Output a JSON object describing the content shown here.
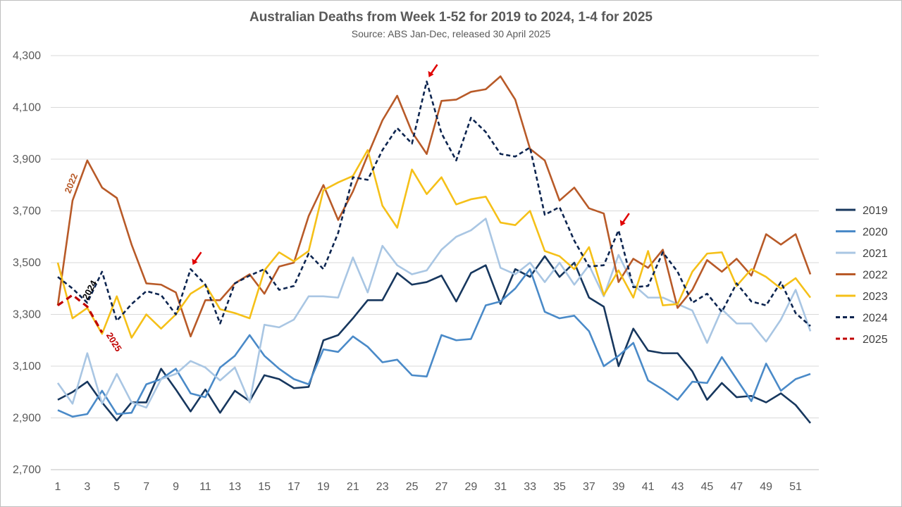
{
  "chart_data": {
    "type": "line",
    "title": "Australian Deaths from Week 1-52 for 2019 to 2024, 1-4 for 2025",
    "subtitle": "Source: ABS Jan-Dec, released 30 April 2025",
    "xlabel": "",
    "ylabel": "",
    "ylim": [
      2700,
      4300
    ],
    "y_ticks": [
      "2,700",
      "2,900",
      "3,100",
      "3,300",
      "3,500",
      "3,700",
      "3,900",
      "4,100",
      "4,300"
    ],
    "x_ticks": [
      "1",
      "3",
      "5",
      "7",
      "9",
      "11",
      "13",
      "15",
      "17",
      "19",
      "21",
      "23",
      "25",
      "27",
      "29",
      "31",
      "33",
      "35",
      "37",
      "39",
      "41",
      "43",
      "45",
      "47",
      "49",
      "51"
    ],
    "x_range": [
      1,
      52
    ],
    "grid": "horizontal",
    "legend_position": "right",
    "series": [
      {
        "name": "2019",
        "color": "#17375e",
        "dash": "solid",
        "values": [
          2970,
          3000,
          3040,
          2960,
          2890,
          2960,
          2960,
          3090,
          3010,
          2925,
          3010,
          2920,
          3005,
          2965,
          3065,
          3050,
          3015,
          3020,
          3200,
          3220,
          3285,
          3355,
          3355,
          3460,
          3415,
          3425,
          3450,
          3350,
          3460,
          3490,
          3340,
          3475,
          3445,
          3525,
          3445,
          3500,
          3365,
          3330,
          3100,
          3245,
          3160,
          3150,
          3150,
          3080,
          2970,
          3035,
          2980,
          2985,
          2960,
          2995,
          2950,
          2880
        ]
      },
      {
        "name": "2020",
        "color": "#4a8ac8",
        "dash": "solid",
        "values": [
          2930,
          2905,
          2915,
          3005,
          2915,
          2920,
          3030,
          3050,
          3090,
          2995,
          2980,
          3095,
          3140,
          3220,
          3140,
          3090,
          3050,
          3030,
          3165,
          3155,
          3215,
          3175,
          3115,
          3125,
          3065,
          3060,
          3220,
          3200,
          3205,
          3335,
          3350,
          3400,
          3475,
          3310,
          3285,
          3295,
          3235,
          3100,
          3140,
          3190,
          3045,
          3010,
          2970,
          3040,
          3035,
          3135,
          3050,
          2965,
          3110,
          3005,
          3050,
          3070
        ]
      },
      {
        "name": "2021",
        "color": "#a9c6e3",
        "dash": "solid",
        "values": [
          3035,
          2955,
          3150,
          2955,
          3070,
          2960,
          2940,
          3050,
          3070,
          3120,
          3095,
          3045,
          3095,
          2960,
          3260,
          3250,
          3280,
          3370,
          3370,
          3365,
          3520,
          3385,
          3565,
          3490,
          3455,
          3470,
          3550,
          3600,
          3625,
          3670,
          3480,
          3455,
          3500,
          3425,
          3500,
          3415,
          3490,
          3370,
          3530,
          3415,
          3365,
          3365,
          3340,
          3315,
          3190,
          3320,
          3265,
          3265,
          3195,
          3280,
          3395,
          3235
        ]
      },
      {
        "name": "2022",
        "color": "#b85a28",
        "dash": "solid",
        "values": [
          3335,
          3740,
          3895,
          3790,
          3750,
          3570,
          3420,
          3415,
          3385,
          3215,
          3355,
          3355,
          3420,
          3455,
          3380,
          3485,
          3500,
          3680,
          3800,
          3665,
          3775,
          3915,
          4050,
          4145,
          4005,
          3920,
          4125,
          4130,
          4160,
          4170,
          4220,
          4130,
          3940,
          3895,
          3740,
          3790,
          3710,
          3690,
          3425,
          3515,
          3480,
          3550,
          3325,
          3395,
          3510,
          3465,
          3515,
          3450,
          3610,
          3570,
          3610,
          3455
        ]
      },
      {
        "name": "2023",
        "color": "#f5c018",
        "dash": "solid",
        "values": [
          3500,
          3285,
          3325,
          3225,
          3370,
          3210,
          3300,
          3245,
          3300,
          3380,
          3415,
          3320,
          3305,
          3285,
          3470,
          3540,
          3505,
          3545,
          3780,
          3810,
          3835,
          3935,
          3720,
          3635,
          3860,
          3765,
          3830,
          3725,
          3745,
          3755,
          3655,
          3645,
          3700,
          3545,
          3525,
          3475,
          3560,
          3375,
          3470,
          3365,
          3545,
          3335,
          3340,
          3465,
          3535,
          3540,
          3410,
          3475,
          3445,
          3400,
          3440,
          3365
        ]
      },
      {
        "name": "2024",
        "color": "#0d2550",
        "dash": "dashed",
        "values": [
          3445,
          3400,
          3345,
          3465,
          3275,
          3340,
          3390,
          3375,
          3300,
          3475,
          3415,
          3265,
          3420,
          3450,
          3475,
          3395,
          3410,
          3535,
          3475,
          3615,
          3830,
          3820,
          3935,
          4020,
          3960,
          4200,
          4000,
          3895,
          4060,
          4005,
          3920,
          3910,
          3945,
          3685,
          3715,
          3585,
          3485,
          3490,
          3625,
          3405,
          3410,
          3540,
          3465,
          3345,
          3380,
          3310,
          3420,
          3350,
          3335,
          3425,
          3305,
          3255
        ]
      },
      {
        "name": "2025",
        "color": "#c00000",
        "dash": "dashed",
        "values": [
          3335,
          3375,
          3330,
          3230
        ]
      }
    ],
    "annotations": [
      {
        "text": "2022",
        "color": "#b85a28"
      },
      {
        "text": "2024",
        "color": "#000000"
      },
      {
        "text": "2025",
        "color": "#c00000"
      }
    ],
    "arrow_color": "#e00000",
    "arrow_weeks": [
      26,
      10,
      39
    ]
  }
}
